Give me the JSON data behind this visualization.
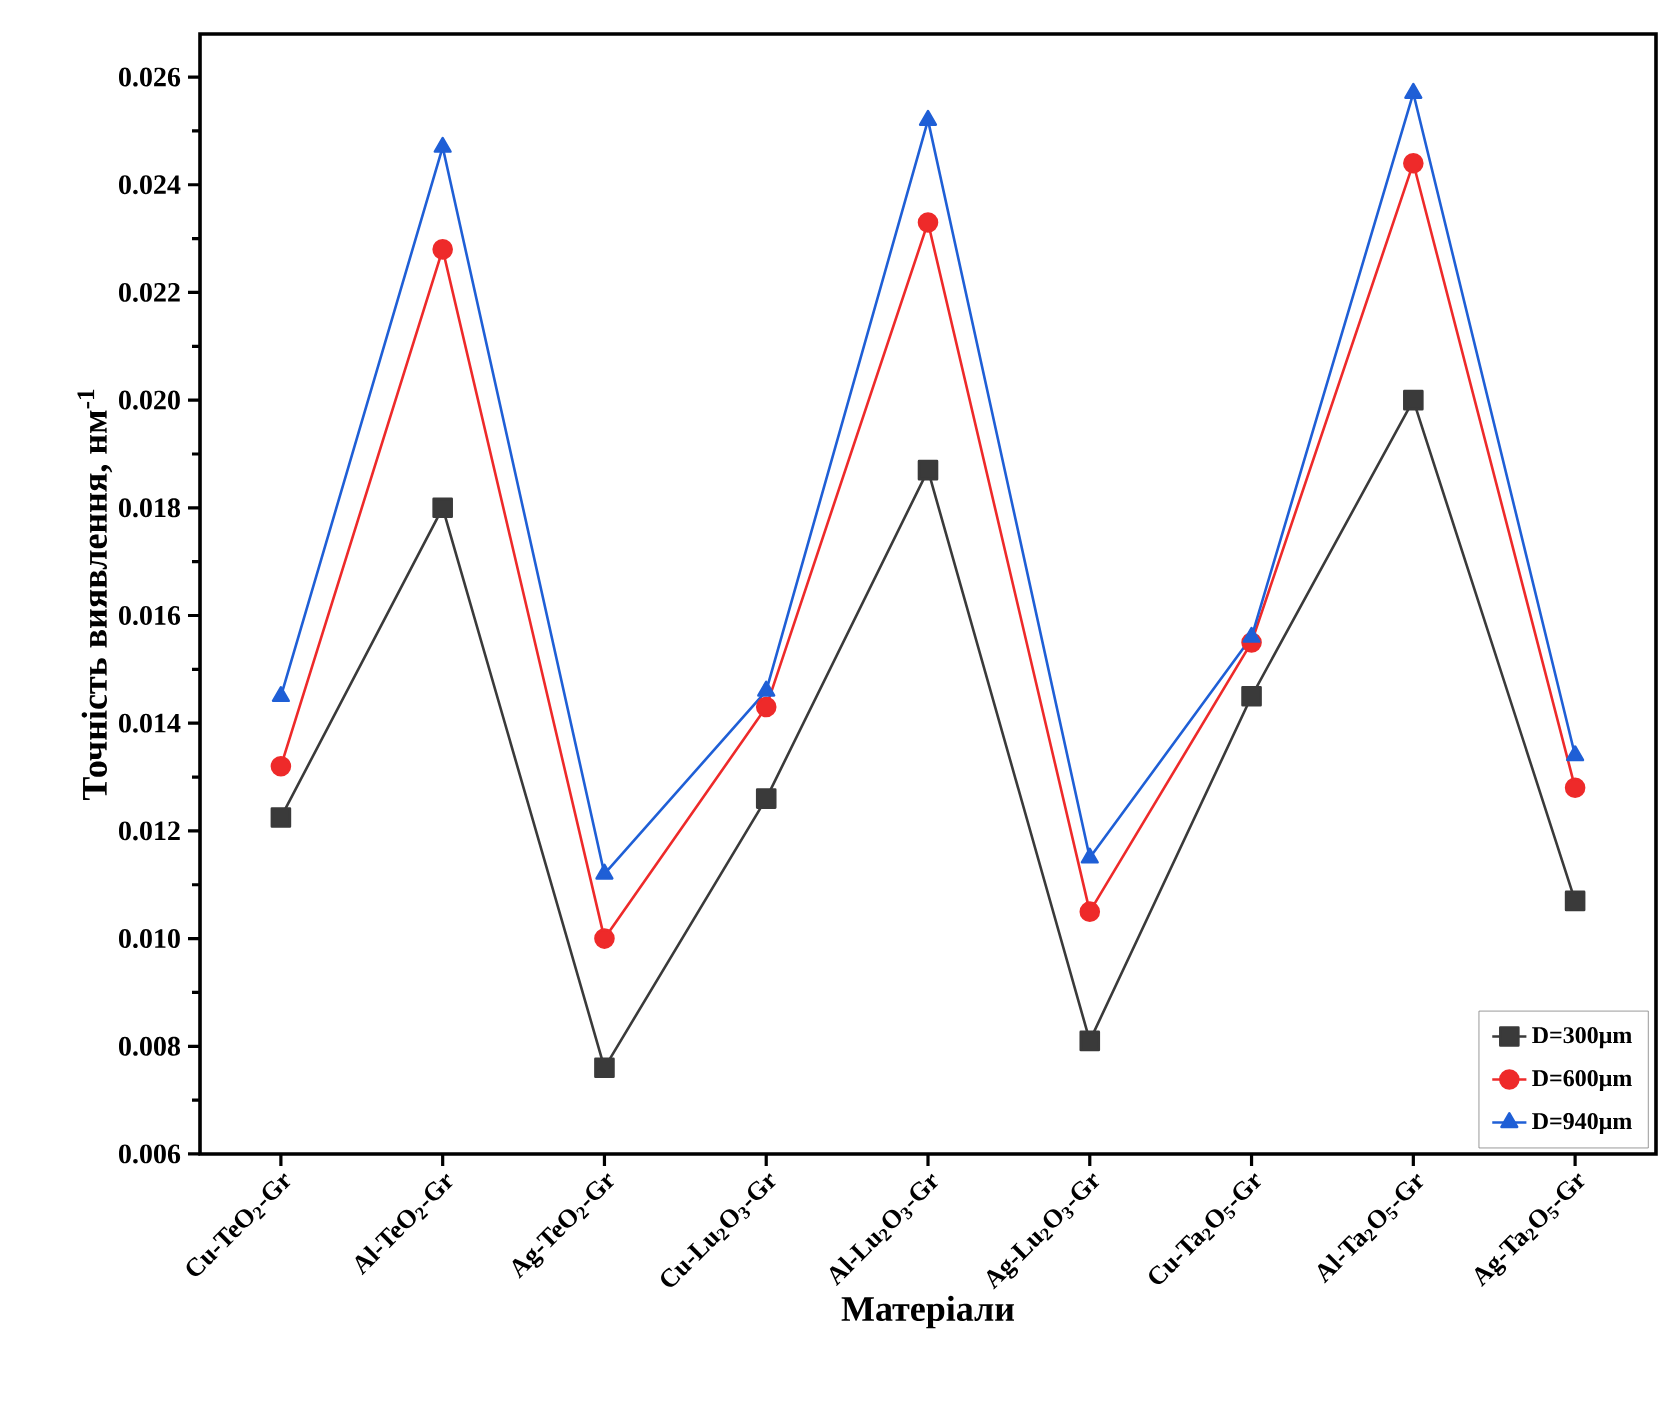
{
  "chart_data": {
    "type": "line",
    "xlabel": "Матеріали",
    "ylabel": "Точність виявлення, нм$^{-1}$",
    "categories": [
      "Cu-TeO$_{2}$-Gr",
      "Al-TeO$_{2}$-Gr",
      "Ag-TeO$_{2}$-Gr",
      "Cu-Lu$_{2}$O$_{3}$-Gr",
      "Al-Lu$_{2}$O$_{3}$-Gr",
      "Ag-Lu$_{2}$O$_{3}$-Gr",
      "Cu-Ta$_{2}$O$_{5}$-Gr",
      "Al-Ta$_{2}$O$_{5}$-Gr",
      "Ag-Ta$_{2}$O$_{5}$-Gr"
    ],
    "series": [
      {
        "name": "D=300μm",
        "color": "#3a3a3a",
        "marker": "square",
        "values": [
          0.01225,
          0.018,
          0.0076,
          0.0126,
          0.0187,
          0.0081,
          0.0145,
          0.02,
          0.0107
        ]
      },
      {
        "name": "D=600μm",
        "color": "#ee2a2a",
        "marker": "circle",
        "values": [
          0.0132,
          0.0228,
          0.01,
          0.0143,
          0.0233,
          0.0105,
          0.0155,
          0.0244,
          0.0128
        ]
      },
      {
        "name": "D=940μm",
        "color": "#1f5fd6",
        "marker": "triangle",
        "values": [
          0.0145,
          0.0247,
          0.0112,
          0.0146,
          0.0252,
          0.0115,
          0.0156,
          0.0257,
          0.0134
        ]
      }
    ],
    "ylim": [
      0.006,
      0.0268
    ],
    "yticks": [
      0.006,
      0.008,
      {
        "value": 0.01,
        "label": "0.010"
      },
      0.012,
      0.014,
      0.016,
      0.018,
      {
        "value": 0.02,
        "label": "0.020"
      },
      0.022,
      0.024,
      0.026
    ],
    "grid": false,
    "legend": "bottom right",
    "line_style": "solid"
  }
}
